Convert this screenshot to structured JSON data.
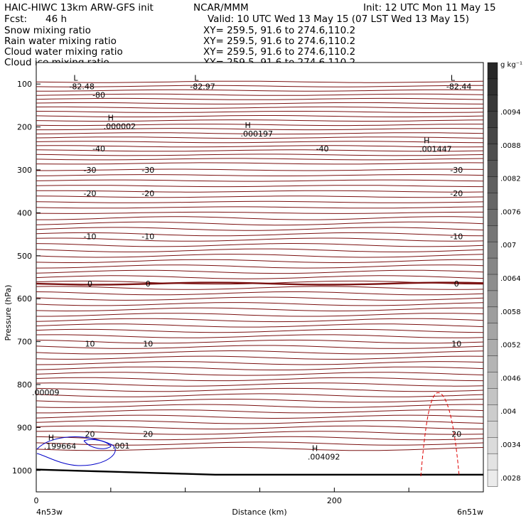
{
  "header": {
    "model": "HAIC-HIWC 13km ARW-GFS init",
    "center": "NCAR/MMM",
    "init": "Init: 12 UTC Mon 11 May 15",
    "fcst_label": "Fcst:",
    "fcst_value": "46 h",
    "valid": "Valid: 10 UTC Wed 13 May 15 (07 LST Wed 13 May 15)"
  },
  "fields": [
    {
      "name": "Snow mixing ratio",
      "xy": "XY= 259.5, 91.6 to 274.6,110.2",
      "color": "#000000"
    },
    {
      "name": "Rain water mixing ratio",
      "xy": "XY= 259.5, 91.6 to 274.6,110.2",
      "color": "#e00000"
    },
    {
      "name": "Cloud water mixing ratio",
      "xy": "XY= 259.5, 91.6 to 274.6,110.2",
      "color": "#0000e0"
    },
    {
      "name": "Cloud ice mixing ratio",
      "xy": "XY= 259.5, 91.6 to 274.6,110.2",
      "color": "#000000"
    }
  ],
  "chart_data": {
    "type": "contour",
    "xlabel": "Distance (km)",
    "ylabel": "Pressure (hPa)",
    "xlim": [
      0,
      300
    ],
    "ylim": [
      1050,
      50
    ],
    "xticks": [
      0,
      200
    ],
    "yticks": [
      100,
      200,
      300,
      400,
      500,
      600,
      700,
      800,
      900,
      1000
    ],
    "x_endpoints": {
      "left": "4n53w",
      "right": "6n51w"
    },
    "colorbar": {
      "unit": "g kg⁻¹",
      "labels": [
        ".0094",
        ".0088",
        ".0082",
        ".0076",
        ".007",
        ".0064",
        ".0058",
        ".0052",
        ".0046",
        ".004",
        ".0034",
        ".0028"
      ]
    },
    "temperature_contours": [
      {
        "label": "-80",
        "p": 125
      },
      {
        "label": "-40",
        "p": 250
      },
      {
        "label": "-30",
        "p": 300
      },
      {
        "label": "-20",
        "p": 355
      },
      {
        "label": "-10",
        "p": 455
      },
      {
        "label": "0",
        "p": 565
      },
      {
        "label": "10",
        "p": 705
      },
      {
        "label": "20",
        "p": 915
      }
    ],
    "extrema": [
      {
        "symbol": "L",
        "value": "-82.48",
        "x": 25,
        "p": 112,
        "color": "#7a0000"
      },
      {
        "symbol": "L",
        "value": "-82.97",
        "x": 106,
        "p": 112,
        "color": "#7a0000"
      },
      {
        "symbol": "L",
        "value": "-82.44",
        "x": 278,
        "p": 112,
        "color": "#7a0000"
      },
      {
        "symbol": "H",
        "value": ".000002",
        "x": 48,
        "p": 205,
        "color": "#000000"
      },
      {
        "symbol": "H",
        "value": ".000197",
        "x": 140,
        "p": 222,
        "color": "#000000"
      },
      {
        "symbol": "H",
        "value": ".001447",
        "x": 260,
        "p": 258,
        "color": "#000000"
      },
      {
        "symbol": "H",
        "value": ".199664",
        "x": 8,
        "p": 950,
        "color": "#0000c8"
      },
      {
        "symbol": "H",
        "value": ".004092",
        "x": 185,
        "p": 975,
        "color": "#0000c8"
      },
      {
        "symbol": "",
        "value": ".00009",
        "x": 0,
        "p": 825,
        "color": "#b00000"
      }
    ],
    "cloud_water_contour_label": ".001",
    "rain_water_contour": "dashed"
  }
}
